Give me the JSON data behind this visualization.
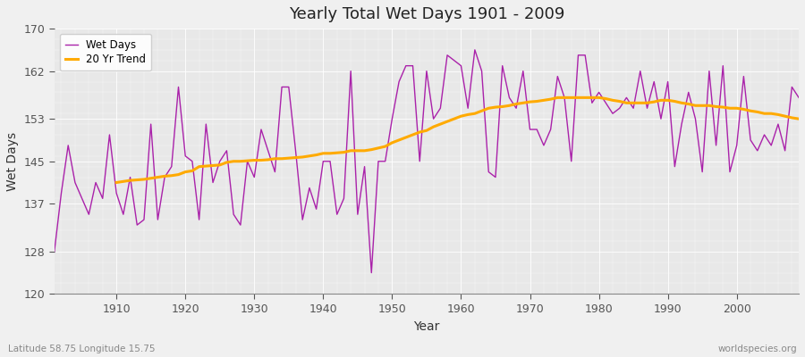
{
  "title": "Yearly Total Wet Days 1901 - 2009",
  "xlabel": "Year",
  "ylabel": "Wet Days",
  "footnote_left": "Latitude 58.75 Longitude 15.75",
  "footnote_right": "worldspecies.org",
  "legend_wet": "Wet Days",
  "legend_trend": "20 Yr Trend",
  "wet_color": "#aa22aa",
  "trend_color": "#ffaa00",
  "bg_outer": "#f0f0f0",
  "bg_plot": "#e8e8e8",
  "grid_color": "#ffffff",
  "ylim": [
    120,
    170
  ],
  "yticks": [
    120,
    128,
    137,
    145,
    153,
    162,
    170
  ],
  "xlim": [
    1901,
    2009
  ],
  "xticks": [
    1910,
    1920,
    1930,
    1940,
    1950,
    1960,
    1970,
    1980,
    1990,
    2000
  ],
  "years": [
    1901,
    1902,
    1903,
    1904,
    1905,
    1906,
    1907,
    1908,
    1909,
    1910,
    1911,
    1912,
    1913,
    1914,
    1915,
    1916,
    1917,
    1918,
    1919,
    1920,
    1921,
    1922,
    1923,
    1924,
    1925,
    1926,
    1927,
    1928,
    1929,
    1930,
    1931,
    1932,
    1933,
    1934,
    1935,
    1936,
    1937,
    1938,
    1939,
    1940,
    1941,
    1942,
    1943,
    1944,
    1945,
    1946,
    1947,
    1948,
    1949,
    1950,
    1951,
    1952,
    1953,
    1954,
    1955,
    1956,
    1957,
    1958,
    1959,
    1960,
    1961,
    1962,
    1963,
    1964,
    1965,
    1966,
    1967,
    1968,
    1969,
    1970,
    1971,
    1972,
    1973,
    1974,
    1975,
    1976,
    1977,
    1978,
    1979,
    1980,
    1981,
    1982,
    1983,
    1984,
    1985,
    1986,
    1987,
    1988,
    1989,
    1990,
    1991,
    1992,
    1993,
    1994,
    1995,
    1996,
    1997,
    1998,
    1999,
    2000,
    2001,
    2002,
    2003,
    2004,
    2005,
    2006,
    2007,
    2008,
    2009
  ],
  "wet_days": [
    128,
    139,
    148,
    141,
    138,
    135,
    141,
    138,
    150,
    139,
    135,
    142,
    133,
    134,
    152,
    134,
    142,
    144,
    159,
    146,
    145,
    134,
    152,
    141,
    145,
    147,
    135,
    133,
    145,
    142,
    151,
    147,
    143,
    159,
    159,
    147,
    134,
    140,
    136,
    145,
    145,
    135,
    138,
    162,
    135,
    144,
    124,
    145,
    145,
    153,
    160,
    163,
    163,
    145,
    162,
    153,
    155,
    165,
    164,
    163,
    155,
    166,
    162,
    143,
    142,
    163,
    157,
    155,
    162,
    151,
    151,
    148,
    151,
    161,
    157,
    145,
    165,
    165,
    156,
    158,
    156,
    154,
    155,
    157,
    155,
    162,
    155,
    160,
    153,
    160,
    144,
    152,
    158,
    153,
    143,
    162,
    148,
    163,
    143,
    148,
    161,
    149,
    147,
    150,
    148,
    152,
    147,
    159,
    157
  ],
  "trend_start_year": 1910,
  "trend_values": [
    141.0,
    141.2,
    141.4,
    141.5,
    141.6,
    141.8,
    142.0,
    142.2,
    142.3,
    142.5,
    143.0,
    143.2,
    144.0,
    144.1,
    144.2,
    144.3,
    144.8,
    145.0,
    145.0,
    145.1,
    145.2,
    145.2,
    145.3,
    145.5,
    145.5,
    145.6,
    145.7,
    145.8,
    146.0,
    146.2,
    146.5,
    146.5,
    146.6,
    146.7,
    147.0,
    147.0,
    147.0,
    147.2,
    147.5,
    147.8,
    148.5,
    149.0,
    149.5,
    150.0,
    150.5,
    150.8,
    151.5,
    152.0,
    152.5,
    153.0,
    153.5,
    153.8,
    154.0,
    154.5,
    155.0,
    155.2,
    155.3,
    155.5,
    155.8,
    156.0,
    156.2,
    156.3,
    156.5,
    156.7,
    157.0,
    157.0,
    157.0,
    157.0,
    157.0,
    157.0,
    157.0,
    156.8,
    156.5,
    156.3,
    156.0,
    156.0,
    156.0,
    156.0,
    156.2,
    156.5,
    156.5,
    156.3,
    156.0,
    155.8,
    155.5,
    155.5,
    155.5,
    155.3,
    155.2,
    155.0,
    155.0,
    154.8,
    154.5,
    154.3,
    154.0,
    154.0,
    153.8,
    153.5,
    153.2,
    153.0
  ]
}
